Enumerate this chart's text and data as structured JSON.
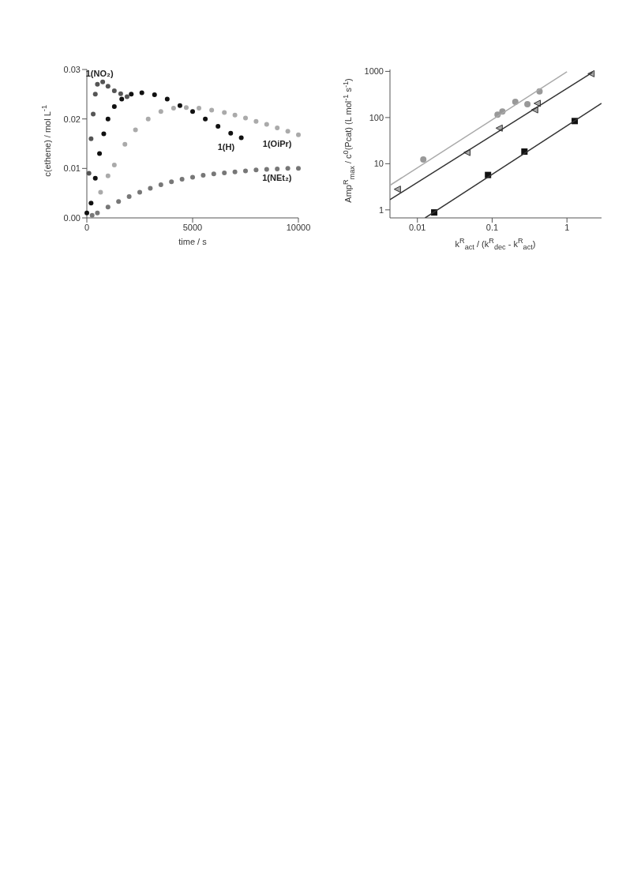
{
  "chart_data": [
    {
      "type": "scatter",
      "xlabel": "time / s",
      "ylabel": "c(ethene) / mol L$^{-1}$",
      "xlim": [
        0,
        10000
      ],
      "xticks": [
        0,
        5000,
        10000
      ],
      "ylim": [
        0,
        0.03
      ],
      "yticks": [
        {
          "value": 0,
          "label": "0.00"
        },
        {
          "value": 0.01,
          "label": "0.01"
        },
        {
          "value": 0.02,
          "label": "0.02"
        },
        {
          "value": 0.03,
          "label": "0.03"
        }
      ],
      "marker": "circle",
      "series": [
        {
          "name": "1(NO₂)",
          "color": "#555555",
          "x": [
            100,
            200,
            300,
            400,
            500,
            750,
            1000,
            1300,
            1600,
            1900
          ],
          "values": [
            0.009,
            0.016,
            0.021,
            0.025,
            0.027,
            0.0275,
            0.0266,
            0.0257,
            0.0251,
            0.0245
          ]
        },
        {
          "name": "1(H)",
          "color": "#111111",
          "x": [
            0,
            200,
            400,
            600,
            800,
            1000,
            1300,
            1650,
            2100,
            2600,
            3200,
            3800,
            4400,
            5000,
            5600,
            6200,
            6800,
            7300
          ],
          "values": [
            0.001,
            0.003,
            0.008,
            0.013,
            0.017,
            0.02,
            0.0225,
            0.024,
            0.025,
            0.0253,
            0.0249,
            0.024,
            0.0227,
            0.0215,
            0.02,
            0.0185,
            0.0171,
            0.0162
          ]
        },
        {
          "name": "1(OiPr)",
          "color": "#aaaaaa",
          "x": [
            650,
            1000,
            1300,
            1800,
            2300,
            2900,
            3500,
            4100,
            4700,
            5300,
            5900,
            6500,
            7000,
            7500,
            8000,
            8500,
            9000,
            9500,
            10000
          ],
          "values": [
            0.0052,
            0.0085,
            0.0107,
            0.0149,
            0.0178,
            0.02,
            0.0215,
            0.0222,
            0.0223,
            0.0222,
            0.0218,
            0.0213,
            0.0208,
            0.0202,
            0.0195,
            0.0189,
            0.0182,
            0.0175,
            0.0168
          ]
        },
        {
          "name": "1(NEt₂)",
          "color": "#777777",
          "x": [
            250,
            500,
            1000,
            1500,
            2000,
            2500,
            3000,
            3500,
            4000,
            4500,
            5000,
            5500,
            6000,
            6500,
            7000,
            7500,
            8000,
            8500,
            9000,
            9500,
            10000
          ],
          "values": [
            0.0005,
            0.001,
            0.0022,
            0.0033,
            0.0043,
            0.0052,
            0.006,
            0.0067,
            0.0073,
            0.0078,
            0.0082,
            0.0086,
            0.0089,
            0.0091,
            0.0093,
            0.0095,
            0.0097,
            0.0098,
            0.0099,
            0.01,
            0.01
          ]
        }
      ]
    },
    {
      "type": "scatter",
      "log": "xy",
      "xlabel": "k$^{R}$$_{act}$ / (k$^{R}$$_{dec}$ - k$^{R}$$_{act}$)",
      "ylabel": "Amp$^{R}$$_{max}$ / c$^{0}$(Pcat) (L mol$^{-1}$ s$^{-1}$)",
      "xlim": [
        0.0043,
        2.9
      ],
      "xticks": [
        0.01,
        0.1,
        1
      ],
      "ylim": [
        0.67,
        1100
      ],
      "yticks": [
        1,
        10,
        100,
        1000
      ],
      "series": [
        {
          "color": "#999999",
          "marker": "circle",
          "x": [
            0.012,
            0.118,
            0.137,
            0.204,
            0.296,
            0.43
          ],
          "values": [
            12.3,
            115,
            135,
            218,
            195,
            370
          ]
        },
        {
          "type": "line",
          "marker": "none",
          "color": "#aaaaaa",
          "x": [
            0.0043,
            1
          ],
          "values": [
            3.4,
            980
          ]
        },
        {
          "color": "#aaaaaa",
          "marker": "triangle",
          "x": [
            0.0054,
            0.046,
            0.124,
            0.37,
            0.4,
            2.1
          ],
          "values": [
            2.8,
            17.5,
            59,
            147,
            203,
            890
          ]
        },
        {
          "type": "line",
          "marker": "none",
          "color": "#333333",
          "x": [
            0.0043,
            2.2
          ],
          "values": [
            1.67,
            950
          ]
        },
        {
          "color": "#111111",
          "marker": "square",
          "x": [
            0.0168,
            0.088,
            0.27,
            1.27
          ],
          "values": [
            0.88,
            5.7,
            18.3,
            84
          ]
        },
        {
          "type": "line",
          "marker": "none",
          "color": "#333333",
          "x": [
            0.0127,
            2.9
          ],
          "values": [
            0.67,
            203
          ]
        }
      ]
    }
  ]
}
